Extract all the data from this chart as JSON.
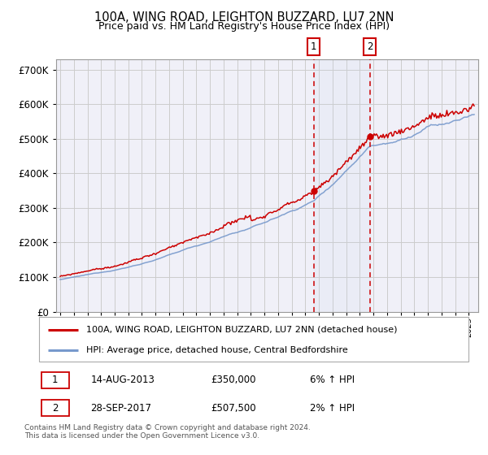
{
  "title1": "100A, WING ROAD, LEIGHTON BUZZARD, LU7 2NN",
  "title2": "Price paid vs. HM Land Registry's House Price Index (HPI)",
  "ytick_vals": [
    0,
    100000,
    200000,
    300000,
    400000,
    500000,
    600000,
    700000
  ],
  "ylim": [
    0,
    730000
  ],
  "xlim_start": 1994.7,
  "xlim_end": 2025.7,
  "point1_x": 2013.617,
  "point1_y": 350000,
  "point2_x": 2017.747,
  "point2_y": 507500,
  "vline1_x": 2013.617,
  "vline2_x": 2017.747,
  "shade_alpha": 0.13,
  "shade_color": "#c8d8f0",
  "label1": "1",
  "label2": "2",
  "legend_line1": "100A, WING ROAD, LEIGHTON BUZZARD, LU7 2NN (detached house)",
  "legend_line2": "HPI: Average price, detached house, Central Bedfordshire",
  "table_row1_num": "1",
  "table_row1_date": "14-AUG-2013",
  "table_row1_price": "£350,000",
  "table_row1_hpi": "6% ↑ HPI",
  "table_row2_num": "2",
  "table_row2_date": "28-SEP-2017",
  "table_row2_price": "£507,500",
  "table_row2_hpi": "2% ↑ HPI",
  "footnote": "Contains HM Land Registry data © Crown copyright and database right 2024.\nThis data is licensed under the Open Government Licence v3.0.",
  "line_color_red": "#cc0000",
  "line_color_blue": "#7799cc",
  "background_color": "#ffffff",
  "grid_color": "#cccccc",
  "box_color_red": "#cc0000",
  "chart_bg": "#f0f0f8"
}
